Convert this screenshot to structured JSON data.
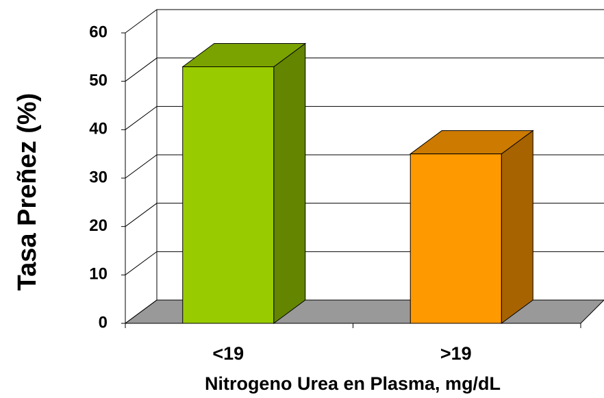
{
  "chart_data": {
    "type": "bar3d",
    "y_label": "Tasa Preñez (%)",
    "x_label": "Nitrogeno Urea en Plasma, mg/dL",
    "categories": [
      "<19",
      ">19"
    ],
    "values": [
      53,
      35
    ],
    "colors": [
      "#99cc00",
      "#ff9900"
    ],
    "ylim": [
      0,
      60
    ],
    "yticks": [
      0,
      10,
      20,
      30,
      40,
      50,
      60
    ],
    "grid": true
  }
}
